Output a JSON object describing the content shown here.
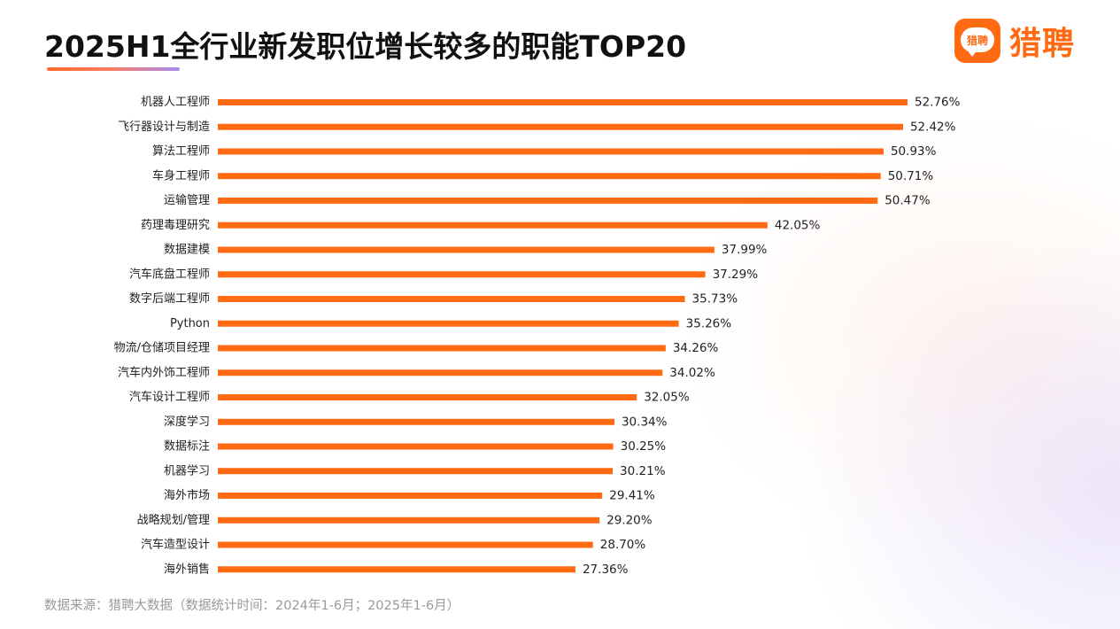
{
  "title": "2025H1全行业新发职位增长较多的职能TOP20",
  "brand": {
    "name": "猎聘",
    "icon_text": "猎聘",
    "color": "#ff6a13"
  },
  "source": "数据来源：猎聘大数据（数据统计时间：2024年1-6月；2025年1-6月）",
  "chart_data": {
    "type": "bar",
    "orientation": "horizontal",
    "bar_color": "#ff6a13",
    "value_suffix": "%",
    "categories": [
      "机器人工程师",
      "飞行器设计与制造",
      "算法工程师",
      "车身工程师",
      "运输管理",
      "药理毒理研究",
      "数据建模",
      "汽车底盘工程师",
      "数字后端工程师",
      "Python",
      "物流/仓储项目经理",
      "汽车内外饰工程师",
      "汽车设计工程师",
      "深度学习",
      "数据标注",
      "机器学习",
      "海外市场",
      "战略规划/管理",
      "汽车造型设计",
      "海外销售"
    ],
    "values": [
      52.76,
      52.42,
      50.93,
      50.71,
      50.47,
      42.05,
      37.99,
      37.29,
      35.73,
      35.26,
      34.26,
      34.02,
      32.05,
      30.34,
      30.25,
      30.21,
      29.41,
      29.2,
      28.7,
      27.36
    ],
    "grid": false,
    "legend": "none"
  }
}
